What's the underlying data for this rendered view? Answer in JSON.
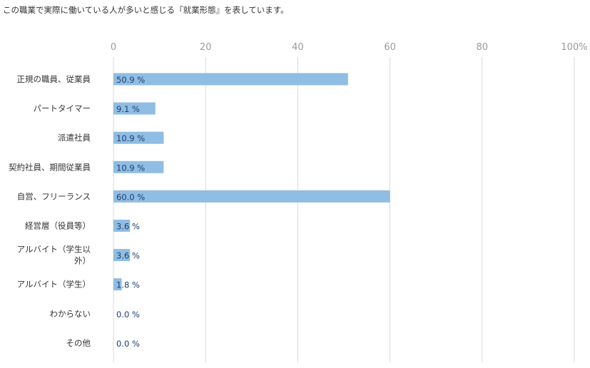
{
  "caption": "この職業で実際に働いている人が多いと感じる『就業形態』を表しています。",
  "colors": {
    "bar": "#8fbde3",
    "grid": "#d9d9d9",
    "label": "#1f3f6e"
  },
  "chart_data": {
    "type": "bar",
    "orientation": "horizontal",
    "title": "",
    "xlabel": "",
    "ylabel": "",
    "xlim": [
      0,
      100
    ],
    "ticks": [
      "0",
      "20",
      "40",
      "60",
      "80",
      "100%"
    ],
    "grid": true,
    "categories": [
      [
        "正規の職員、従業員"
      ],
      [
        "パートタイマー"
      ],
      [
        "派遣社員"
      ],
      [
        "契約社員、期間従業員"
      ],
      [
        "自営、フリーランス"
      ],
      [
        "経営層（役員等）"
      ],
      [
        "アルバイト（学生以",
        "外）"
      ],
      [
        "アルバイト（学生）"
      ],
      [
        "わからない"
      ],
      [
        "その他"
      ]
    ],
    "values": [
      50.9,
      9.1,
      10.9,
      10.9,
      60.0,
      3.6,
      3.6,
      1.8,
      0.0,
      0.0
    ],
    "value_labels": [
      "50.9 %",
      "9.1 %",
      "10.9 %",
      "10.9 %",
      "60.0 %",
      "3.6 %",
      "3.6 %",
      "1.8 %",
      "0.0 %",
      "0.0 %"
    ]
  }
}
